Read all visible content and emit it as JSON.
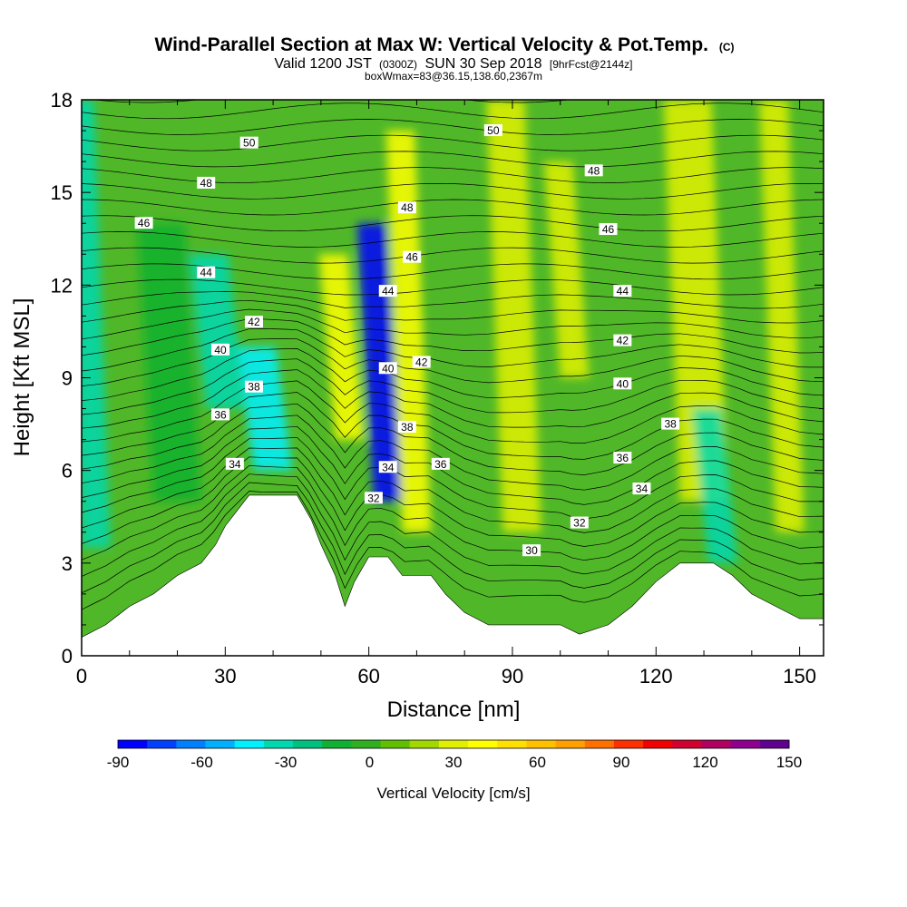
{
  "chart_data": {
    "type": "heatmap",
    "title": "Wind-Parallel Section at Max W: Vertical Velocity & Pot.Temp.",
    "title_mark": "(C)",
    "subtitle_main_a": "Valid 1200 JST",
    "subtitle_small_a": "(0300Z)",
    "subtitle_main_b": "SUN 30 Sep 2018",
    "subtitle_small_b": "[9hrFcst@2144z]",
    "subtitle_line2": "boxWmax=83@36.15,138.60,2367m",
    "xlabel": "Distance [nm]",
    "ylabel": "Height [Kft MSL]",
    "xlim": [
      0,
      155
    ],
    "ylim": [
      0,
      18
    ],
    "xticks": [
      0,
      30,
      60,
      90,
      120,
      150
    ],
    "yticks": [
      0,
      3,
      6,
      9,
      12,
      15,
      18
    ],
    "colorbar": {
      "label": "Vertical Velocity [cm/s]",
      "tick_labels": [
        "-90",
        "-60",
        "-30",
        "0",
        "30",
        "60",
        "90",
        "120",
        "150"
      ],
      "tick_values": [
        -90,
        -60,
        -30,
        0,
        30,
        60,
        90,
        120,
        150
      ],
      "colors": [
        "#0000ff",
        "#0040ff",
        "#0080ff",
        "#00b0ff",
        "#00f0ff",
        "#00d8b0",
        "#00c080",
        "#10b030",
        "#30b020",
        "#60c000",
        "#a0d800",
        "#e0f000",
        "#ffff00",
        "#ffe000",
        "#ffc000",
        "#ffa000",
        "#ff7000",
        "#ff3000",
        "#f00000",
        "#d00030",
        "#b00060",
        "#900090",
        "#600090"
      ]
    },
    "terrain": [
      [
        0,
        0.6
      ],
      [
        5,
        1.0
      ],
      [
        10,
        1.6
      ],
      [
        15,
        2.0
      ],
      [
        20,
        2.6
      ],
      [
        25,
        3.0
      ],
      [
        28,
        3.6
      ],
      [
        30,
        4.2
      ],
      [
        32,
        4.6
      ],
      [
        35,
        5.2
      ],
      [
        42,
        5.2
      ],
      [
        45,
        5.2
      ],
      [
        48,
        4.4
      ],
      [
        50,
        3.6
      ],
      [
        53,
        2.6
      ],
      [
        55,
        1.6
      ],
      [
        57,
        2.4
      ],
      [
        60,
        3.2
      ],
      [
        64,
        3.2
      ],
      [
        67,
        2.6
      ],
      [
        73,
        2.6
      ],
      [
        76,
        2.0
      ],
      [
        80,
        1.4
      ],
      [
        85,
        1.0
      ],
      [
        100,
        1.0
      ],
      [
        104,
        0.7
      ],
      [
        110,
        1.0
      ],
      [
        115,
        1.6
      ],
      [
        120,
        2.4
      ],
      [
        125,
        3.0
      ],
      [
        132,
        3.0
      ],
      [
        136,
        2.6
      ],
      [
        140,
        2.0
      ],
      [
        145,
        1.6
      ],
      [
        150,
        1.2
      ],
      [
        155,
        1.2
      ]
    ],
    "velocity_features": [
      {
        "x": 3,
        "y0": 3.5,
        "y1": 18,
        "value": -35,
        "width": 3
      },
      {
        "x": 20,
        "y0": 5,
        "y1": 14,
        "value": -15,
        "width": 5
      },
      {
        "x": 30,
        "y0": 8,
        "y1": 13,
        "value": -30,
        "width": 4
      },
      {
        "x": 40,
        "y0": 6,
        "y1": 10,
        "value": -40,
        "width": 4
      },
      {
        "x": 56,
        "y0": 7,
        "y1": 13,
        "value": 40,
        "width": 3
      },
      {
        "x": 64,
        "y0": 5,
        "y1": 14,
        "value": -90,
        "width": 3
      },
      {
        "x": 70,
        "y0": 4,
        "y1": 17,
        "value": 40,
        "width": 3
      },
      {
        "x": 92,
        "y0": 4,
        "y1": 18,
        "value": 25,
        "width": 4
      },
      {
        "x": 103,
        "y0": 9,
        "y1": 16,
        "value": 30,
        "width": 3
      },
      {
        "x": 130,
        "y0": 5,
        "y1": 18,
        "value": 35,
        "width": 5
      },
      {
        "x": 134,
        "y0": 3,
        "y1": 8,
        "value": -35,
        "width": 3
      },
      {
        "x": 148,
        "y0": 4,
        "y1": 18,
        "value": 30,
        "width": 3
      }
    ],
    "contour_labels": [
      {
        "text": "50",
        "x": 35,
        "y": 16.6
      },
      {
        "text": "48",
        "x": 26,
        "y": 15.3
      },
      {
        "text": "46",
        "x": 13,
        "y": 14.0
      },
      {
        "text": "44",
        "x": 26,
        "y": 12.4
      },
      {
        "text": "42",
        "x": 36,
        "y": 10.8
      },
      {
        "text": "40",
        "x": 29,
        "y": 9.9
      },
      {
        "text": "38",
        "x": 36,
        "y": 8.7
      },
      {
        "text": "36",
        "x": 29,
        "y": 7.8
      },
      {
        "text": "34",
        "x": 32,
        "y": 6.2
      },
      {
        "text": "48",
        "x": 68,
        "y": 14.5
      },
      {
        "text": "46",
        "x": 69,
        "y": 12.9
      },
      {
        "text": "44",
        "x": 64,
        "y": 11.8
      },
      {
        "text": "42",
        "x": 71,
        "y": 9.5
      },
      {
        "text": "40",
        "x": 64,
        "y": 9.3
      },
      {
        "text": "38",
        "x": 68,
        "y": 7.4
      },
      {
        "text": "36",
        "x": 75,
        "y": 6.2
      },
      {
        "text": "34",
        "x": 64,
        "y": 6.1
      },
      {
        "text": "32",
        "x": 61,
        "y": 5.1
      },
      {
        "text": "50",
        "x": 86,
        "y": 17.0
      },
      {
        "text": "48",
        "x": 107,
        "y": 15.7
      },
      {
        "text": "46",
        "x": 110,
        "y": 13.8
      },
      {
        "text": "44",
        "x": 113,
        "y": 11.8
      },
      {
        "text": "42",
        "x": 113,
        "y": 10.2
      },
      {
        "text": "40",
        "x": 113,
        "y": 8.8
      },
      {
        "text": "38",
        "x": 123,
        "y": 7.5
      },
      {
        "text": "36",
        "x": 113,
        "y": 6.4
      },
      {
        "text": "34",
        "x": 117,
        "y": 5.4
      },
      {
        "text": "32",
        "x": 104,
        "y": 4.3
      },
      {
        "text": "30",
        "x": 94,
        "y": 3.4
      }
    ]
  }
}
